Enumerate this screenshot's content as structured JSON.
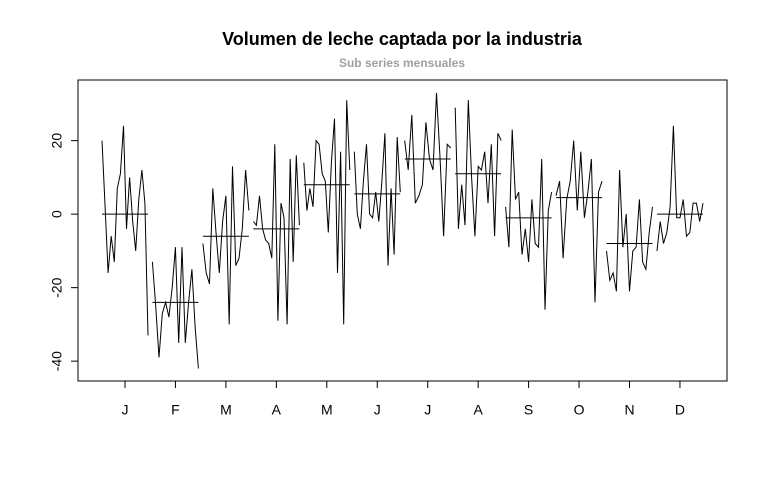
{
  "chart_data": {
    "type": "monthplot",
    "title": "Volumen de leche captada por la industria",
    "subtitle": "Sub series mensuales",
    "ylim": [
      -45.4,
      36.5
    ],
    "yticks": [
      -40,
      -20,
      0,
      20
    ],
    "color": "#000000",
    "months": [
      {
        "label": "J",
        "mean": 0,
        "values": [
          20,
          2,
          -16,
          -6,
          -13,
          7,
          11,
          24,
          -4,
          10,
          -2,
          -10,
          4,
          12,
          3,
          -33
        ]
      },
      {
        "label": "F",
        "mean": -24,
        "values": [
          -13,
          -25,
          -39,
          -27,
          -24,
          -28,
          -20,
          -9,
          -35,
          -9,
          -35,
          -24,
          -15,
          -31,
          -42
        ]
      },
      {
        "label": "M",
        "mean": -6,
        "values": [
          -8,
          -16,
          -19,
          7,
          -5,
          -16,
          -2,
          5,
          -30,
          13,
          -14,
          -12,
          -4,
          12,
          1
        ]
      },
      {
        "label": "A",
        "mean": -4,
        "values": [
          -2,
          -3,
          5,
          -4,
          -7,
          -8,
          -12,
          19,
          -29,
          3,
          -1,
          -30,
          15,
          -13,
          16,
          -3
        ]
      },
      {
        "label": "M",
        "mean": 8,
        "values": [
          14,
          1,
          7,
          2,
          20,
          19,
          11,
          9,
          -5,
          14,
          26,
          -16,
          17,
          -30,
          31,
          12
        ]
      },
      {
        "label": "J",
        "mean": 5.5,
        "values": [
          17,
          0,
          -4,
          9,
          19,
          0,
          -1,
          6,
          -2,
          9,
          22,
          -14,
          7,
          -11,
          21,
          6
        ]
      },
      {
        "label": "J",
        "mean": 15,
        "values": [
          20,
          12,
          27,
          3,
          5,
          8,
          25,
          15,
          12,
          33,
          15,
          -6,
          19,
          18
        ]
      },
      {
        "label": "A",
        "mean": 11,
        "values": [
          29,
          -4,
          8,
          -3,
          31,
          10,
          -6,
          13,
          12,
          17,
          3,
          19,
          -6,
          22,
          20
        ]
      },
      {
        "label": "S",
        "mean": -1,
        "values": [
          2,
          -9,
          23,
          4,
          6,
          -11,
          -4,
          -13,
          4,
          -8,
          -9,
          15,
          -26,
          1,
          6
        ]
      },
      {
        "label": "O",
        "mean": 4.5,
        "values": [
          5,
          9,
          -12,
          4,
          9,
          20,
          1,
          17,
          -1,
          6,
          15,
          -24,
          6,
          9
        ]
      },
      {
        "label": "N",
        "mean": -8,
        "values": [
          -10,
          -18,
          -16,
          -21,
          12,
          -9,
          0,
          -21,
          -10,
          -9,
          4,
          -13,
          -15,
          -5,
          2
        ]
      },
      {
        "label": "D",
        "mean": 0,
        "values": [
          -10,
          -2,
          -8,
          -5,
          2,
          24,
          -1,
          -1,
          4,
          -6,
          -5,
          3,
          3,
          -2,
          3
        ]
      }
    ]
  }
}
